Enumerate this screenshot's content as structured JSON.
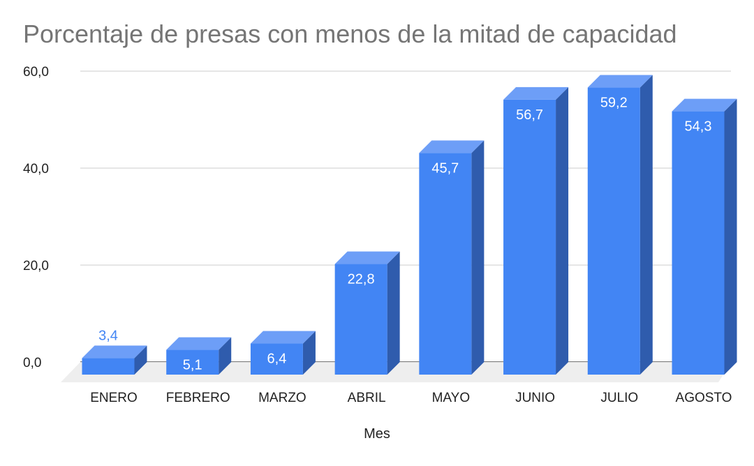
{
  "chart_data": {
    "type": "bar",
    "title": "Porcentaje de presas con menos de la mitad de capacidad",
    "xlabel": "Mes",
    "ylabel": "",
    "categories": [
      "ENERO",
      "FEBRERO",
      "MARZO",
      "ABRIL",
      "MAYO",
      "JUNIO",
      "JULIO",
      "AGOSTO"
    ],
    "values": [
      3.4,
      5.1,
      6.4,
      22.8,
      45.7,
      56.7,
      59.2,
      54.3
    ],
    "data_labels": [
      "3,4",
      "5,1",
      "6,4",
      "22,8",
      "45,7",
      "56,7",
      "59,2",
      "54,3"
    ],
    "ylim": [
      0,
      60
    ],
    "yticks": [
      0,
      20,
      40,
      60
    ],
    "ytick_labels": [
      "0,0",
      "20,0",
      "40,0",
      "60,0"
    ],
    "grid": true,
    "style": "3d",
    "colors": {
      "front": "#4285f4",
      "top": "#6d9ef7",
      "side": "#2f5cad",
      "label_inside": "#ffffff",
      "label_outside": "#4285f4"
    }
  }
}
